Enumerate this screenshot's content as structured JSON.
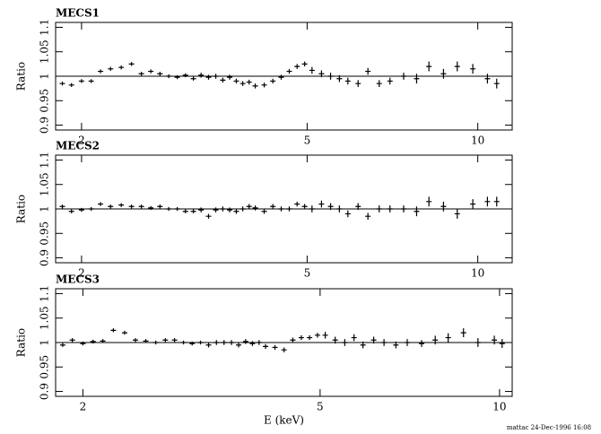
{
  "chart_data": [
    {
      "type": "errorbar",
      "title": "MECS1",
      "y_label": "Ratio",
      "xscale": "log",
      "hline": 1,
      "xlim": [
        1.8,
        11.5
      ],
      "xticks": [
        2,
        5,
        10
      ],
      "ylim": [
        0.89,
        1.11
      ],
      "yticks": [
        0.9,
        0.95,
        1,
        1.05,
        1.1
      ],
      "x": [
        1.85,
        1.92,
        2.0,
        2.08,
        2.16,
        2.25,
        2.35,
        2.45,
        2.55,
        2.65,
        2.75,
        2.85,
        2.95,
        3.05,
        3.15,
        3.25,
        3.35,
        3.45,
        3.55,
        3.65,
        3.75,
        3.85,
        3.95,
        4.05,
        4.2,
        4.35,
        4.5,
        4.65,
        4.8,
        4.95,
        5.1,
        5.3,
        5.5,
        5.7,
        5.9,
        6.15,
        6.4,
        6.7,
        7.0,
        7.4,
        7.8,
        8.2,
        8.7,
        9.2,
        9.8,
        10.4,
        10.8
      ],
      "values": [
        0.985,
        0.982,
        0.99,
        0.99,
        1.01,
        1.015,
        1.018,
        1.025,
        1.005,
        1.01,
        1.005,
        1.0,
        0.998,
        1.002,
        0.995,
        1.002,
        0.998,
        1.0,
        0.992,
        0.998,
        0.99,
        0.985,
        0.988,
        0.98,
        0.982,
        0.99,
        0.998,
        1.01,
        1.02,
        1.025,
        1.012,
        1.005,
        1.0,
        0.995,
        0.99,
        0.985,
        1.01,
        0.985,
        0.99,
        1.0,
        0.995,
        1.02,
        1.005,
        1.02,
        1.015,
        0.995,
        0.985
      ],
      "errors": [
        0.004,
        0.004,
        0.004,
        0.004,
        0.004,
        0.004,
        0.004,
        0.004,
        0.004,
        0.004,
        0.004,
        0.004,
        0.004,
        0.004,
        0.004,
        0.005,
        0.005,
        0.005,
        0.005,
        0.005,
        0.005,
        0.005,
        0.005,
        0.005,
        0.005,
        0.005,
        0.005,
        0.005,
        0.005,
        0.005,
        0.007,
        0.007,
        0.007,
        0.007,
        0.007,
        0.007,
        0.007,
        0.007,
        0.007,
        0.007,
        0.01,
        0.01,
        0.01,
        0.01,
        0.01,
        0.01,
        0.01
      ]
    },
    {
      "type": "errorbar",
      "title": "MECS2",
      "y_label": "Ratio",
      "xscale": "log",
      "hline": 1,
      "xlim": [
        1.8,
        11.5
      ],
      "xticks": [
        2,
        5,
        10
      ],
      "ylim": [
        0.89,
        1.11
      ],
      "yticks": [
        0.9,
        0.95,
        1,
        1.05,
        1.1
      ],
      "x": [
        1.85,
        1.92,
        2.0,
        2.08,
        2.16,
        2.25,
        2.35,
        2.45,
        2.55,
        2.65,
        2.75,
        2.85,
        2.95,
        3.05,
        3.15,
        3.25,
        3.35,
        3.45,
        3.55,
        3.65,
        3.75,
        3.85,
        3.95,
        4.05,
        4.2,
        4.35,
        4.5,
        4.65,
        4.8,
        4.95,
        5.1,
        5.3,
        5.5,
        5.7,
        5.9,
        6.15,
        6.4,
        6.7,
        7.0,
        7.4,
        7.8,
        8.2,
        8.7,
        9.2,
        9.8,
        10.4,
        10.8
      ],
      "values": [
        1.005,
        0.995,
        0.998,
        1.0,
        1.01,
        1.005,
        1.008,
        1.005,
        1.005,
        1.002,
        1.005,
        1.0,
        1.0,
        0.995,
        0.995,
        0.998,
        0.985,
        0.998,
        1.0,
        0.998,
        0.995,
        1.0,
        1.005,
        1.002,
        0.995,
        1.005,
        1.0,
        1.0,
        1.01,
        1.005,
        1.0,
        1.01,
        1.005,
        1.0,
        0.99,
        1.005,
        0.985,
        1.0,
        1.0,
        1.0,
        0.995,
        1.015,
        1.005,
        0.99,
        1.01,
        1.015,
        1.015
      ],
      "errors": [
        0.004,
        0.004,
        0.004,
        0.004,
        0.004,
        0.004,
        0.004,
        0.004,
        0.004,
        0.004,
        0.004,
        0.004,
        0.004,
        0.004,
        0.004,
        0.005,
        0.005,
        0.005,
        0.005,
        0.005,
        0.005,
        0.005,
        0.005,
        0.005,
        0.005,
        0.005,
        0.005,
        0.005,
        0.005,
        0.005,
        0.007,
        0.007,
        0.007,
        0.007,
        0.007,
        0.007,
        0.007,
        0.007,
        0.007,
        0.007,
        0.01,
        0.01,
        0.01,
        0.01,
        0.01,
        0.01,
        0.01
      ]
    },
    {
      "type": "errorbar",
      "title": "MECS3",
      "y_label": "Ratio",
      "x_label": "E (keV)",
      "xscale": "log",
      "hline": 1,
      "xlim": [
        1.8,
        10.5
      ],
      "xticks": [
        2,
        5,
        10
      ],
      "ylim": [
        0.89,
        1.11
      ],
      "yticks": [
        0.9,
        0.95,
        1,
        1.05,
        1.1
      ],
      "x": [
        1.85,
        1.92,
        2.0,
        2.08,
        2.16,
        2.25,
        2.35,
        2.45,
        2.55,
        2.65,
        2.75,
        2.85,
        2.95,
        3.05,
        3.15,
        3.25,
        3.35,
        3.45,
        3.55,
        3.65,
        3.75,
        3.85,
        3.95,
        4.05,
        4.2,
        4.35,
        4.5,
        4.65,
        4.8,
        4.95,
        5.1,
        5.3,
        5.5,
        5.7,
        5.9,
        6.15,
        6.4,
        6.7,
        7.0,
        7.4,
        7.8,
        8.2,
        8.7,
        9.2,
        9.8,
        10.1
      ],
      "values": [
        0.995,
        1.005,
        0.998,
        1.002,
        1.003,
        1.025,
        1.02,
        1.005,
        1.003,
        1.0,
        1.005,
        1.005,
        1.0,
        0.998,
        1.0,
        0.995,
        1.0,
        1.0,
        1.0,
        0.995,
        1.002,
        0.998,
        1.0,
        0.992,
        0.99,
        0.985,
        1.005,
        1.01,
        1.01,
        1.015,
        1.015,
        1.005,
        1.0,
        1.01,
        0.995,
        1.005,
        1.0,
        0.995,
        1.0,
        0.998,
        1.005,
        1.01,
        1.02,
        1.0,
        1.005,
        0.998
      ],
      "errors": [
        0.004,
        0.004,
        0.004,
        0.004,
        0.004,
        0.004,
        0.004,
        0.004,
        0.004,
        0.004,
        0.004,
        0.004,
        0.004,
        0.004,
        0.004,
        0.005,
        0.005,
        0.005,
        0.005,
        0.005,
        0.005,
        0.005,
        0.005,
        0.005,
        0.005,
        0.005,
        0.005,
        0.005,
        0.005,
        0.005,
        0.007,
        0.007,
        0.007,
        0.007,
        0.007,
        0.007,
        0.007,
        0.007,
        0.007,
        0.007,
        0.009,
        0.009,
        0.009,
        0.009,
        0.009,
        0.009
      ]
    }
  ],
  "footer": "mattac 24-Dec-1996 16:08"
}
